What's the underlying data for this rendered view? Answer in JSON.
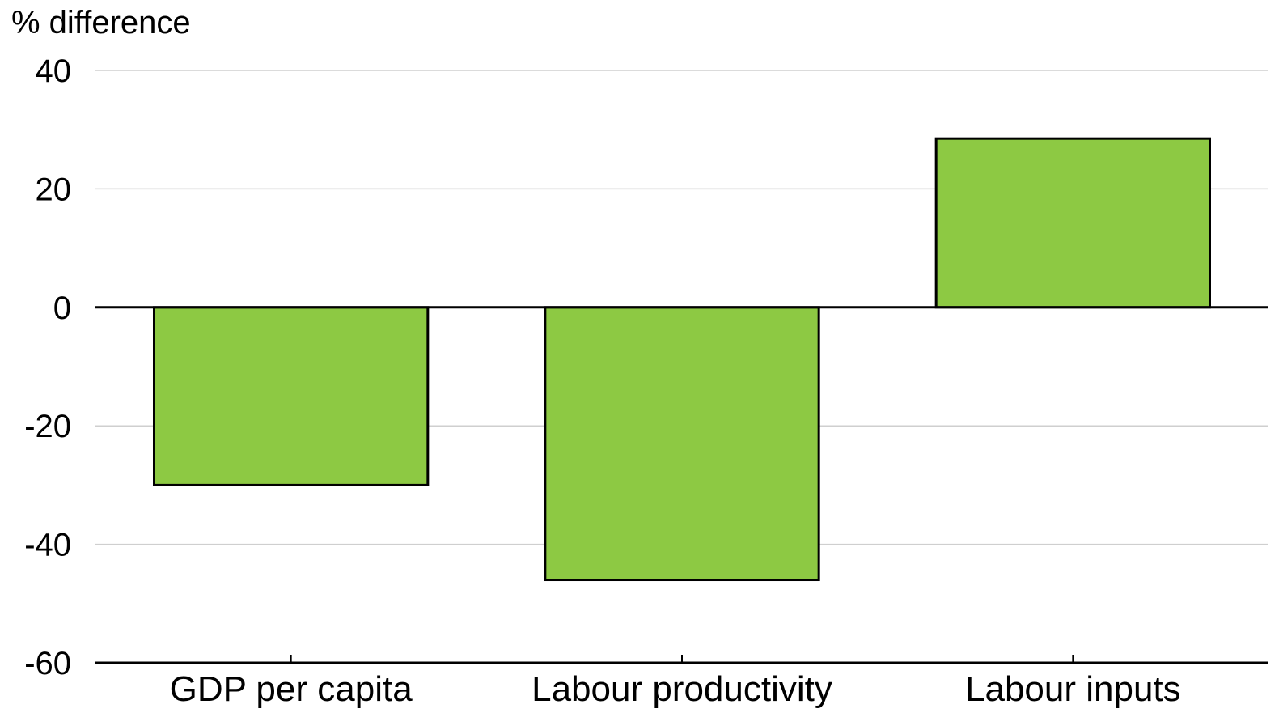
{
  "chart_data": {
    "type": "bar",
    "title": "",
    "ylabel": "% difference",
    "xlabel": "",
    "categories": [
      "GDP per capita",
      "Labour productivity",
      "Labour inputs"
    ],
    "values": [
      -30,
      -46,
      28.5
    ],
    "ylim": [
      -60,
      40
    ],
    "yticks": [
      40,
      20,
      0,
      -20,
      -40,
      -60
    ],
    "grid": true,
    "legend": "none",
    "colors": {
      "bar_fill": "#8dc943",
      "bar_stroke": "#000000",
      "grid": "#cfcfcf"
    }
  }
}
